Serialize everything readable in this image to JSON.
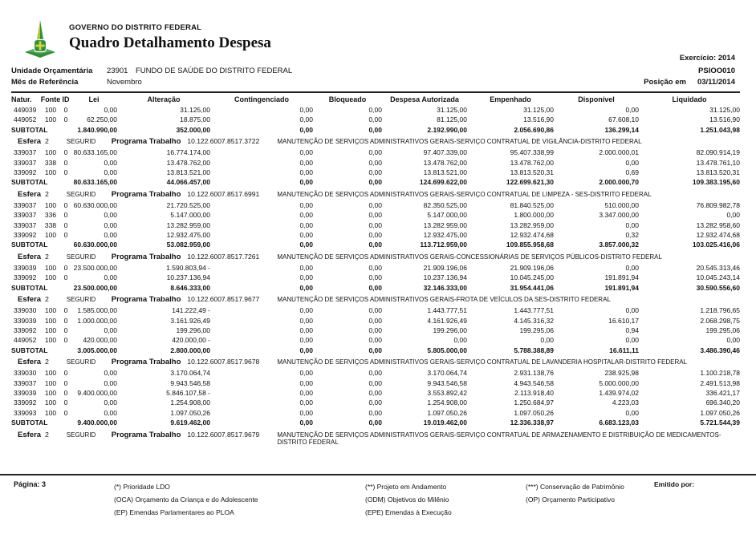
{
  "header": {
    "government": "GOVERNO DO DISTRITO FEDERAL",
    "title": "Quadro Detalhamento Despesa",
    "exercise": "Exercício: 2014",
    "system_code": "PSIOO010",
    "position_label": "Posição em",
    "position_date": "03/11/2014"
  },
  "meta": {
    "unit_label": "Unidade Orçamentária",
    "unit_code": "23901",
    "unit_name": "FUNDO DE SAÚDE DO DISTRITO FEDERAL",
    "month_label": "Mês de Referência",
    "month_value": "Novembro"
  },
  "table": {
    "columns": [
      "Natur.",
      "Fonte",
      "ID",
      "Lei",
      "Alteração",
      "Contingenciado",
      "Bloqueado",
      "Despesa Autorizada",
      "Empenhado",
      "Disponível",
      "Liquidado"
    ],
    "esfera_label": "Esfera",
    "programa_label": "Programa Trabalho",
    "subtotal_label": "SUBTOTAL",
    "sections": [
      {
        "rows": [
          [
            "449039",
            "100",
            "0",
            "0,00",
            "31.125,00",
            "0,00",
            "0,00",
            "31.125,00",
            "31.125,00",
            "0,00",
            "31.125,00"
          ],
          [
            "449052",
            "100",
            "0",
            "62.250,00",
            "18.875,00",
            "0,00",
            "0,00",
            "81.125,00",
            "13.516,90",
            "67.608,10",
            "13.516,90"
          ]
        ],
        "subtotal": [
          "1.840.990,00",
          "352.000,00",
          "0,00",
          "0,00",
          "2.192.990,00",
          "2.056.690,86",
          "136.299,14",
          "1.251.043,98"
        ]
      },
      {
        "esfera": "2",
        "regime": "SEGURID",
        "programa_code": "10.122.6007.8517.3722",
        "descricao": "MANUTENÇÃO DE SERVIÇOS ADMINISTRATIVOS GERAIS-SERVIÇO CONTRATUAL DE VIGILÂNCIA-DISTRITO FEDERAL",
        "rows": [
          [
            "339037",
            "100",
            "0",
            "80.633.165,00",
            "16.774.174,00",
            "0,00",
            "0,00",
            "97.407.339,00",
            "95.407.338,99",
            "2.000.000,01",
            "82.090.914,19"
          ],
          [
            "339037",
            "338",
            "0",
            "0,00",
            "13.478.762,00",
            "0,00",
            "0,00",
            "13.478.762,00",
            "13.478.762,00",
            "0,00",
            "13.478.761,10"
          ],
          [
            "339092",
            "100",
            "0",
            "0,00",
            "13.813.521,00",
            "0,00",
            "0,00",
            "13.813.521,00",
            "13.813.520,31",
            "0,69",
            "13.813.520,31"
          ]
        ],
        "subtotal": [
          "80.633.165,00",
          "44.066.457,00",
          "0,00",
          "0,00",
          "124.699.622,00",
          "122.699.621,30",
          "2.000.000,70",
          "109.383.195,60"
        ]
      },
      {
        "esfera": "2",
        "regime": "SEGURID",
        "programa_code": "10.122.6007.8517.6991",
        "descricao": "MANUTENÇÃO DE SERVIÇOS ADMINISTRATIVOS GERAIS-SERVIÇO CONTRATUAL DE LIMPEZA - SES-DISTRITO FEDERAL",
        "rows": [
          [
            "339037",
            "100",
            "0",
            "60.630.000,00",
            "21.720.525,00",
            "0,00",
            "0,00",
            "82.350.525,00",
            "81.840.525,00",
            "510.000,00",
            "76.809.982,78"
          ],
          [
            "339037",
            "336",
            "0",
            "0,00",
            "5.147.000,00",
            "0,00",
            "0,00",
            "5.147.000,00",
            "1.800.000,00",
            "3.347.000,00",
            "0,00"
          ],
          [
            "339037",
            "338",
            "0",
            "0,00",
            "13.282.959,00",
            "0,00",
            "0,00",
            "13.282.959,00",
            "13.282.959,00",
            "0,00",
            "13.282.958,60"
          ],
          [
            "339092",
            "100",
            "0",
            "0,00",
            "12.932.475,00",
            "0,00",
            "0,00",
            "12.932.475,00",
            "12.932.474,68",
            "0,32",
            "12.932.474,68"
          ]
        ],
        "subtotal": [
          "60.630.000,00",
          "53.082.959,00",
          "0,00",
          "0,00",
          "113.712.959,00",
          "109.855.958,68",
          "3.857.000,32",
          "103.025.416,06"
        ]
      },
      {
        "esfera": "2",
        "regime": "SEGURID",
        "programa_code": "10.122.6007.8517.7261",
        "descricao": "MANUTENÇÃO DE SERVIÇOS ADMINISTRATIVOS GERAIS-CONCESSIONÁRIAS DE SERVIÇOS PÚBLICOS-DISTRITO FEDERAL",
        "rows": [
          [
            "339039",
            "100",
            "0",
            "23.500.000,00",
            "1.590.803,94 -",
            "0,00",
            "0,00",
            "21.909.196,06",
            "21.909.196,06",
            "0,00",
            "20.545.313,46"
          ],
          [
            "339092",
            "100",
            "0",
            "0,00",
            "10.237.136,94",
            "0,00",
            "0,00",
            "10.237.136,94",
            "10.045.245,00",
            "191.891,94",
            "10.045.243,14"
          ]
        ],
        "subtotal": [
          "23.500.000,00",
          "8.646.333,00",
          "0,00",
          "0,00",
          "32.146.333,00",
          "31.954.441,06",
          "191.891,94",
          "30.590.556,60"
        ]
      },
      {
        "esfera": "2",
        "regime": "SEGURID",
        "programa_code": "10.122.6007.8517.9677",
        "descricao": "MANUTENÇÃO DE SERVIÇOS ADMINISTRATIVOS GERAIS-FROTA DE VEÍCULOS DA SES-DISTRITO FEDERAL",
        "rows": [
          [
            "339030",
            "100",
            "0",
            "1.585.000,00",
            "141.222,49 -",
            "0,00",
            "0,00",
            "1.443.777,51",
            "1.443.777,51",
            "0,00",
            "1.218.796,65"
          ],
          [
            "339039",
            "100",
            "0",
            "1.000.000,00",
            "3.161.926,49",
            "0,00",
            "0,00",
            "4.161.926,49",
            "4.145.316,32",
            "16.610,17",
            "2.068.298,75"
          ],
          [
            "339092",
            "100",
            "0",
            "0,00",
            "199.296,00",
            "0,00",
            "0,00",
            "199.296,00",
            "199.295,06",
            "0,94",
            "199.295,06"
          ],
          [
            "449052",
            "100",
            "0",
            "420.000,00",
            "420.000,00 -",
            "0,00",
            "0,00",
            "0,00",
            "0,00",
            "0,00",
            "0,00"
          ]
        ],
        "subtotal": [
          "3.005.000,00",
          "2.800.000,00",
          "0,00",
          "0,00",
          "5.805.000,00",
          "5.788.388,89",
          "16.611,11",
          "3.486.390,46"
        ]
      },
      {
        "esfera": "2",
        "regime": "SEGURID",
        "programa_code": "10.122.6007.8517.9678",
        "descricao": "MANUTENÇÃO DE SERVIÇOS ADMINISTRATIVOS GERAIS-SERVIÇO CONTRATUAL DE LAVANDERIA HOSPITALAR-DISTRITO FEDERAL",
        "rows": [
          [
            "339030",
            "100",
            "0",
            "0,00",
            "3.170.064,74",
            "0,00",
            "0,00",
            "3.170.064,74",
            "2.931.138,76",
            "238.925,98",
            "1.100.218,78"
          ],
          [
            "339037",
            "100",
            "0",
            "0,00",
            "9.943.546,58",
            "0,00",
            "0,00",
            "9.943.546,58",
            "4.943.546,58",
            "5.000.000,00",
            "2.491.513,98"
          ],
          [
            "339039",
            "100",
            "0",
            "9.400.000,00",
            "5.846.107,58 -",
            "0,00",
            "0,00",
            "3.553.892,42",
            "2.113.918,40",
            "1.439.974,02",
            "336.421,17"
          ],
          [
            "339092",
            "100",
            "0",
            "0,00",
            "1.254.908,00",
            "0,00",
            "0,00",
            "1.254.908,00",
            "1.250.684,97",
            "4.223,03",
            "696.340,20"
          ],
          [
            "339093",
            "100",
            "0",
            "0,00",
            "1.097.050,26",
            "0,00",
            "0,00",
            "1.097.050,26",
            "1.097.050,26",
            "0,00",
            "1.097.050,26"
          ]
        ],
        "subtotal": [
          "9.400.000,00",
          "9.619.462,00",
          "0,00",
          "0,00",
          "19.019.462,00",
          "12.336.338,97",
          "6.683.123,03",
          "5.721.544,39"
        ]
      },
      {
        "esfera": "2",
        "regime": "SEGURID",
        "programa_code": "10.122.6007.8517.9679",
        "descricao": "MANUTENÇÃO DE SERVIÇOS ADMINISTRATIVOS GERAIS-SERVIÇO CONTRATUAL DE ARMAZENAMENTO E DISTRIBUIÇÃO DE MEDICAMENTOS-DISTRITO FEDERAL",
        "rows": []
      }
    ]
  },
  "footer": {
    "page_label": "Página: 3",
    "emitted_label": "Emitido por:",
    "legend_col1": [
      "(*)  Prioridade LDO",
      "(OCA)  Orçamento da Criança e do Adolescente",
      "(EP)  Emendas Parlamentares ao PLOA"
    ],
    "legend_col2": [
      "(**)  Projeto em Andamento",
      "(ODM) Objetivos do Milênio",
      "(EPE) Emendas à Execução"
    ],
    "legend_col3": [
      "(***)  Conservação de Patrimônio",
      "(OP) Orçamento Participativo"
    ]
  },
  "colors": {
    "logo_green": "#2f8f3a",
    "logo_yellow": "#b9c02e",
    "rule": "#222222"
  }
}
